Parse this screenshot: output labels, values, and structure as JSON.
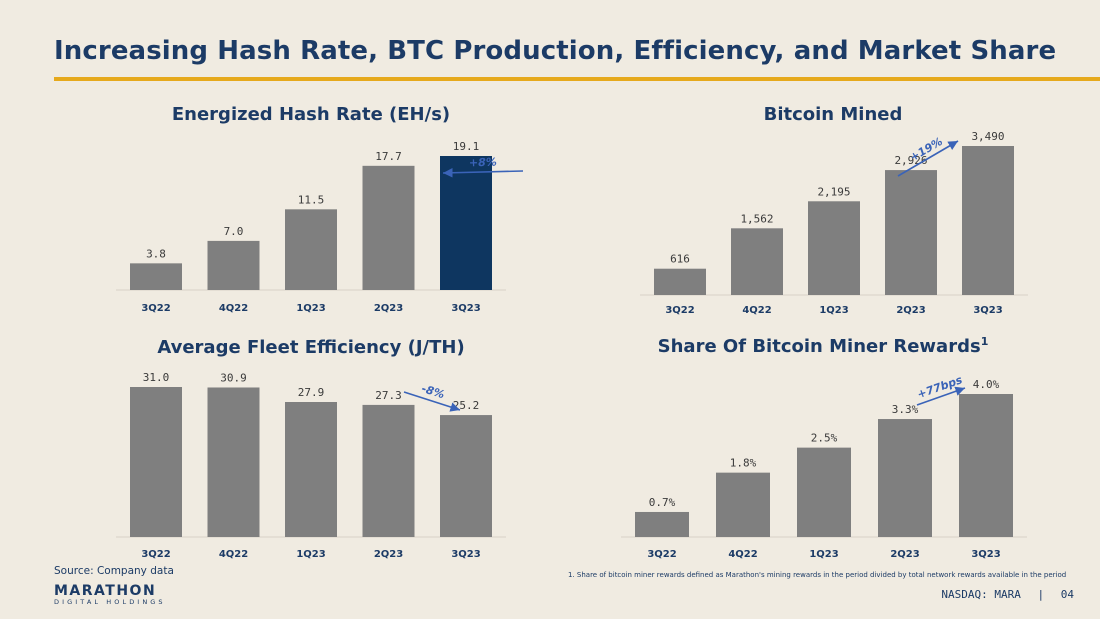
{
  "page": {
    "title": "Increasing Hash Rate, BTC Production, Efficiency, and Market Share",
    "source": "Source: Company data",
    "footnote": "1. Share of bitcoin miner rewards defined as Marathon's mining rewards in the period divided by total network rewards available in the period",
    "logo_main": "MARATHON",
    "logo_sub": "DIGITAL HOLDINGS",
    "ticker": "NASDAQ: MARA",
    "separator": "|",
    "page_number": "04",
    "colors": {
      "bar": "#7f7f7f",
      "highlight": "#0e3660",
      "accent_rule": "#e6a91c",
      "title": "#1c3b66",
      "arrow": "#3a63b8"
    }
  },
  "chart_data": [
    {
      "id": "hash",
      "type": "bar",
      "title": "Energized Hash Rate (EH/s)",
      "categories": [
        "3Q22",
        "4Q22",
        "1Q23",
        "2Q23",
        "3Q23"
      ],
      "values": [
        3.8,
        7.0,
        11.5,
        17.7,
        19.1
      ],
      "labels": [
        "3.8",
        "7.0",
        "11.5",
        "17.7",
        "19.1"
      ],
      "highlight_index": 4,
      "ylim": [
        0,
        19.1
      ],
      "growth": {
        "label": "+8%",
        "from_index": 3,
        "to_index": 4
      }
    },
    {
      "id": "btc",
      "type": "bar",
      "title": "Bitcoin Mined",
      "categories": [
        "3Q22",
        "4Q22",
        "1Q23",
        "2Q23",
        "3Q23"
      ],
      "values": [
        616,
        1562,
        2195,
        2926,
        3490
      ],
      "labels": [
        "616",
        "1,562",
        "2,195",
        "2,926",
        "3,490"
      ],
      "highlight_index": -1,
      "ylim": [
        0,
        3490
      ],
      "growth": {
        "label": "+19%",
        "from_index": 3,
        "to_index": 4
      }
    },
    {
      "id": "eff",
      "type": "bar",
      "title": "Average Fleet Efficiency (J/TH)",
      "categories": [
        "3Q22",
        "4Q22",
        "1Q23",
        "2Q23",
        "3Q23"
      ],
      "values": [
        31.0,
        30.9,
        27.9,
        27.3,
        25.2
      ],
      "labels": [
        "31.0",
        "30.9",
        "27.9",
        "27.3",
        "25.2"
      ],
      "highlight_index": -1,
      "ylim": [
        0,
        31.0
      ],
      "growth": {
        "label": "-8%",
        "from_index": 3,
        "to_index": 4
      }
    },
    {
      "id": "share",
      "type": "bar",
      "title": "Share Of Bitcoin Miner Rewards",
      "title_sup": "1",
      "categories": [
        "3Q22",
        "4Q22",
        "1Q23",
        "2Q23",
        "3Q23"
      ],
      "values": [
        0.7,
        1.8,
        2.5,
        3.3,
        4.0
      ],
      "labels": [
        "0.7%",
        "1.8%",
        "2.5%",
        "3.3%",
        "4.0%"
      ],
      "highlight_index": -1,
      "ylim": [
        0,
        4.0
      ],
      "growth": {
        "label": "+77bps",
        "from_index": 3,
        "to_index": 4
      }
    }
  ]
}
